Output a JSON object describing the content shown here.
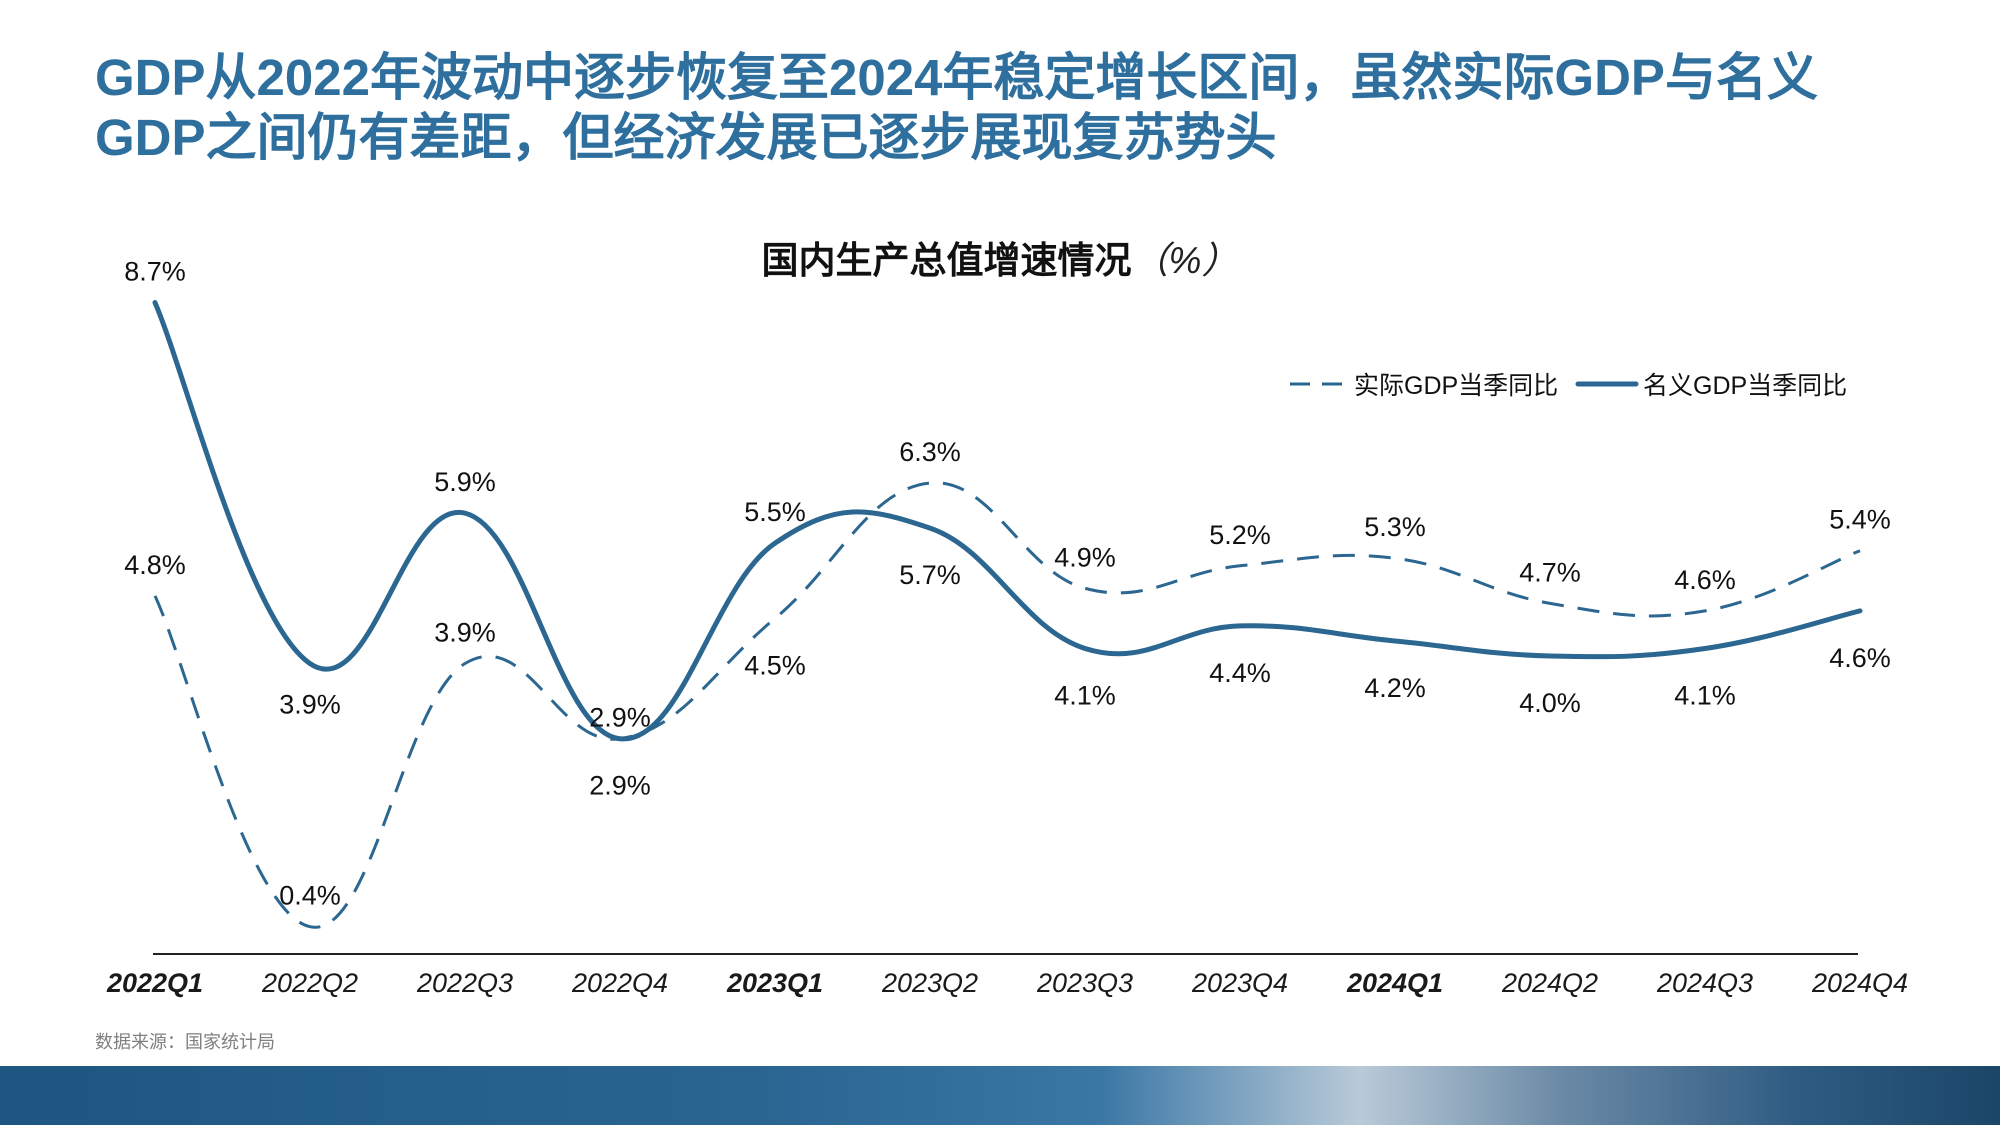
{
  "headline": {
    "line1": "GDP从2022年波动中逐步恢复至2024年稳定增长区间，虽然实际GDP与名义",
    "line2": "GDP之间仍有差距，但经济发展已逐步展现复苏势头"
  },
  "source_note": "数据来源：国家统计局",
  "colors": {
    "accent": "#2e6f9e",
    "series": "#2b6790"
  },
  "chart_data": {
    "type": "line",
    "title": "国内生产总值增速情况",
    "title_unit": "（%）",
    "categories": [
      "2022Q1",
      "2022Q2",
      "2022Q3",
      "2022Q4",
      "2023Q1",
      "2023Q2",
      "2023Q3",
      "2023Q4",
      "2024Q1",
      "2024Q2",
      "2024Q3",
      "2024Q4"
    ],
    "bold_categories": [
      "2022Q1",
      "2023Q1",
      "2024Q1"
    ],
    "series": [
      {
        "name": "实际GDP当季同比",
        "style": "dashed",
        "values": [
          4.8,
          0.4,
          3.9,
          2.9,
          4.5,
          6.3,
          4.9,
          5.2,
          5.3,
          4.7,
          4.6,
          5.4
        ],
        "labels": [
          "4.8%",
          "0.4%",
          "3.9%",
          "2.9%",
          "4.5%",
          "6.3%",
          "4.9%",
          "5.2%",
          "5.3%",
          "4.7%",
          "4.6%",
          "5.4%"
        ]
      },
      {
        "name": "名义GDP当季同比",
        "style": "solid",
        "values": [
          8.7,
          3.9,
          5.9,
          2.9,
          5.5,
          5.7,
          4.1,
          4.4,
          4.2,
          4.0,
          4.1,
          4.6
        ],
        "labels": [
          "8.7%",
          "3.9%",
          "5.9%",
          "2.9%",
          "5.5%",
          "5.7%",
          "4.1%",
          "4.4%",
          "4.2%",
          "4.0%",
          "4.1%",
          "4.6%"
        ]
      }
    ],
    "legend_position": "top-right",
    "grid": false
  }
}
